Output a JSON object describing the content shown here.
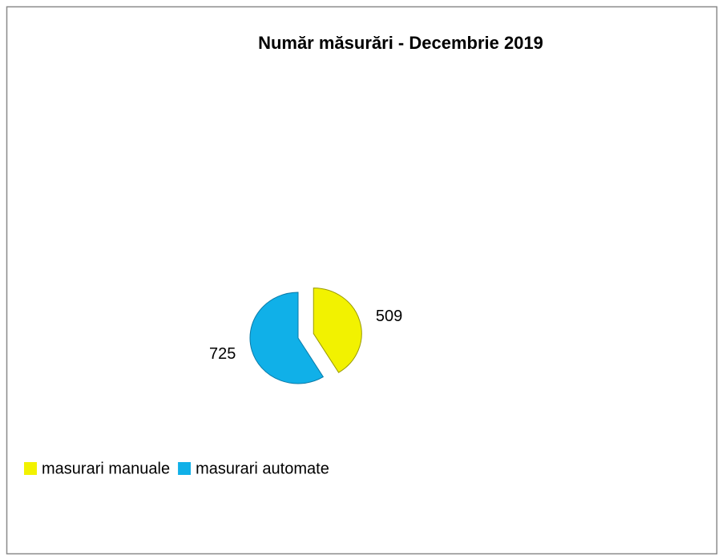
{
  "chart_data": {
    "type": "pie",
    "title": "Număr măsurări - Decembrie 2019",
    "categories": [
      "masurari manuale",
      "masurari automate"
    ],
    "values": [
      509,
      725
    ],
    "colors": [
      "#f2f200",
      "#10b0e8"
    ],
    "legend": "bottom-left"
  }
}
